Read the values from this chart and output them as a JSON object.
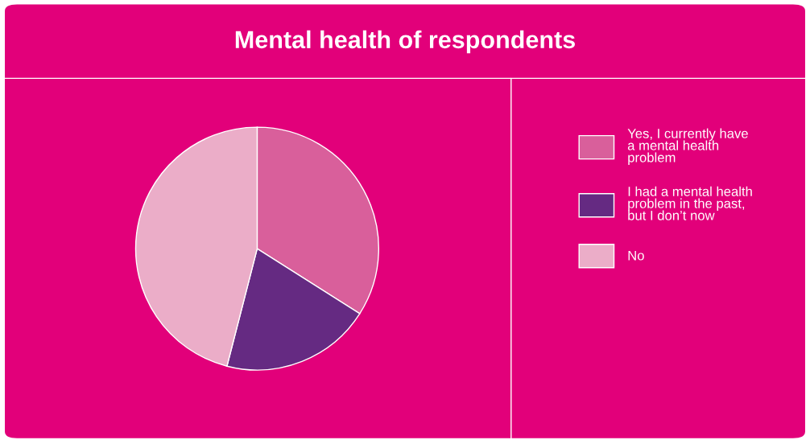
{
  "chart_data": {
    "type": "pie",
    "title": "Mental health of respondents",
    "categories": [
      "Yes, I currently have a mental health problem",
      "I had a mental health problem in the past, but I don’t now",
      "No"
    ],
    "values": [
      34,
      20,
      46
    ],
    "colors": [
      "#d95f9b",
      "#652a82",
      "#ebadc8"
    ],
    "legend": "right"
  }
}
